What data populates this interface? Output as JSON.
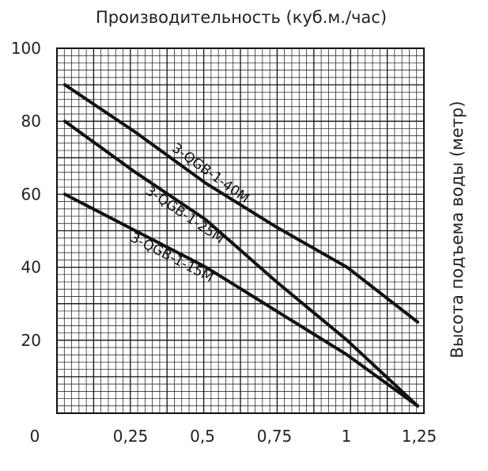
{
  "chart_data": {
    "type": "line",
    "title": "Производительность (куб.м./час)",
    "ylabel": "Высота подъема воды (метр)",
    "xlabel": "",
    "xlim": [
      0,
      1.25
    ],
    "ylim": [
      0,
      100
    ],
    "x_tick_labels": [
      "0",
      "0,25",
      "0,5",
      "0,75",
      "1",
      "1,25"
    ],
    "y_tick_labels": [
      "20",
      "40",
      "60",
      "80",
      "100"
    ],
    "grid": true,
    "series": [
      {
        "name": "3-QGB-1-40M",
        "x": [
          0,
          0.25,
          0.5,
          0.75,
          1.0,
          1.25
        ],
        "y": [
          90,
          77,
          63,
          51,
          40,
          25
        ]
      },
      {
        "name": "3-QGB-1-25M",
        "x": [
          0,
          0.25,
          0.5,
          0.75,
          1.0,
          1.25
        ],
        "y": [
          80,
          66,
          53,
          36,
          20,
          2
        ]
      },
      {
        "name": "3-QGB-1-15M",
        "x": [
          0,
          0.25,
          0.5,
          0.75,
          1.0,
          1.25
        ],
        "y": [
          60,
          50,
          40,
          28,
          16,
          2
        ]
      }
    ]
  }
}
